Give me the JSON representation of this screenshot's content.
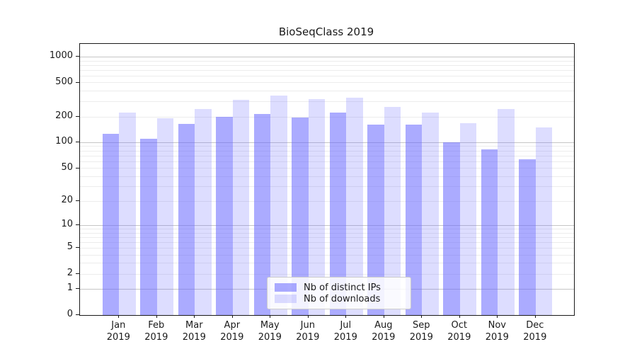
{
  "title": "BioSeqClass 2019",
  "chart_data": {
    "type": "bar",
    "title": "BioSeqClass 2019",
    "categories": [
      "Jan",
      "Feb",
      "Mar",
      "Apr",
      "May",
      "Jun",
      "Jul",
      "Aug",
      "Sep",
      "Oct",
      "Nov",
      "Dec"
    ],
    "year": "2019",
    "series": [
      {
        "name": "Nb of distinct IPs",
        "color": "rgba(102,102,255,0.55)",
        "values": [
          126,
          111,
          167,
          202,
          216,
          196,
          224,
          162,
          163,
          101,
          84,
          64
        ]
      },
      {
        "name": "Nb of downloads",
        "color": "rgba(102,102,255,0.22)",
        "values": [
          227,
          192,
          248,
          319,
          358,
          321,
          335,
          264,
          225,
          170,
          249,
          152
        ]
      }
    ],
    "y_ticks": [
      0,
      1,
      2,
      5,
      10,
      20,
      50,
      100,
      200,
      500,
      1000
    ],
    "y_major_gridlines": [
      1,
      10,
      100,
      1000
    ],
    "y_minor_gridlines": [
      2,
      3,
      4,
      5,
      6,
      7,
      8,
      9,
      20,
      30,
      40,
      50,
      60,
      70,
      80,
      90,
      200,
      300,
      400,
      500,
      600,
      700,
      800,
      900
    ],
    "scale": "log10(value+1)",
    "ylim": [
      0,
      1400
    ],
    "grid": true,
    "legend_position": "lower center",
    "colors": {
      "axis": "#1a1a1a",
      "grid_minor": "#ececec",
      "grid_major": "#c6c6c6",
      "bar_base": "#6666ff",
      "background": "#ffffff"
    }
  }
}
